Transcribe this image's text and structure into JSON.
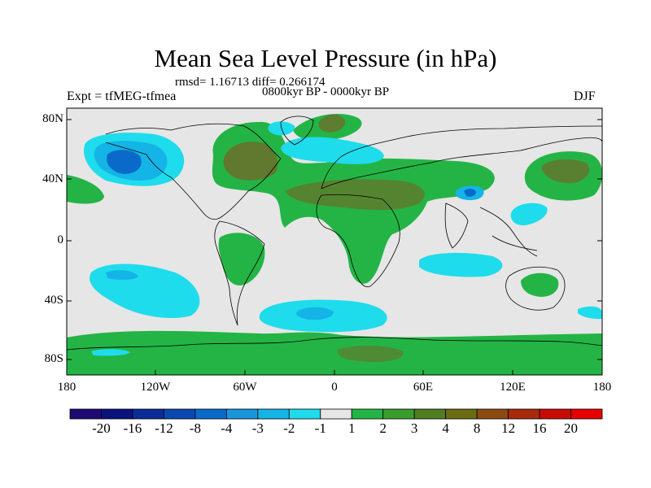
{
  "title": "Mean Sea Level Pressure (in hPa)",
  "stats": "rmsd= 1.16713 diff= 0.266174",
  "subtitle": "0800kyr BP - 0000kyr BP",
  "left_label": "Expt = tfMEG-tfmea",
  "right_label": "DJF",
  "lat_labels": [
    "80N",
    "40N",
    "0",
    "40S",
    "80S"
  ],
  "lon_labels": [
    "180",
    "120W",
    "60W",
    "0",
    "60E",
    "120E",
    "180"
  ],
  "colorbar": {
    "labels": [
      "-20",
      "-16",
      "-12",
      "-8",
      "-4",
      "-3",
      "-2",
      "-1",
      "1",
      "2",
      "3",
      "4",
      "8",
      "12",
      "16",
      "20"
    ],
    "colors": [
      "#1f0a73",
      "#0a127d",
      "#0a2c96",
      "#0b49b0",
      "#0a6ac9",
      "#1996db",
      "#14b4e6",
      "#1fdcec",
      "#e6e6e6",
      "#24b445",
      "#3a9c2c",
      "#507d22",
      "#6b6b14",
      "#8b4a10",
      "#a82a0c",
      "#c70c08",
      "#e60000"
    ]
  },
  "colors": {
    "neutral": "#e6e6e6",
    "green": "#24b445",
    "olive": "#6b6f2a",
    "cyan": "#1fdcec",
    "lightblue": "#14b4e6",
    "blue": "#0a6ac9",
    "coast": "#000000"
  }
}
